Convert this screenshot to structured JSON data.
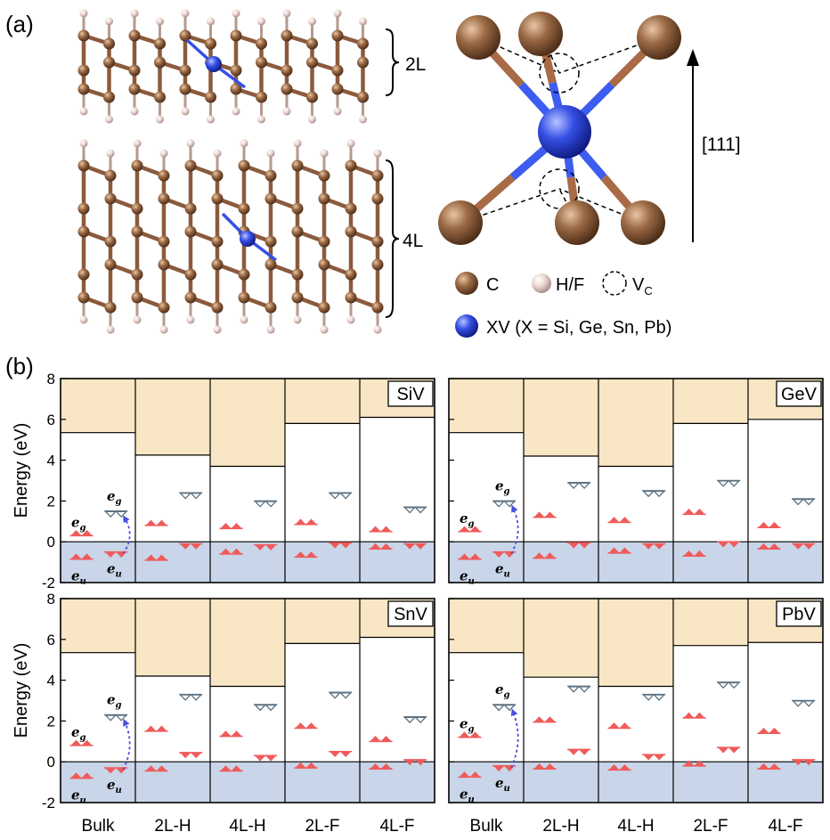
{
  "panel_a": {
    "label": "(a)",
    "layer_labels": [
      "2L",
      "4L"
    ],
    "direction_label": "[111]",
    "legend": {
      "carbon": "C",
      "terminal": "H/F",
      "vacancy_main": "V",
      "vacancy_sub": "C",
      "defect": "XV (X = Si, Ge, Sn, Pb)"
    },
    "colors": {
      "carbon": "#8b5a3c",
      "terminal": "#e8cdc8",
      "defect": "#2f45d8"
    }
  },
  "panel_b": {
    "label": "(b)",
    "ylabel": "Energy (eV)"
  },
  "state_labels": {
    "eg": "e",
    "eg_sub": "g",
    "eu": "e",
    "eu_sub": "u"
  },
  "chart_data": [
    {
      "type": "bar",
      "title": "SiV",
      "categories": [
        "Bulk",
        "2L-H",
        "4L-H",
        "2L-F",
        "4L-F"
      ],
      "ylim": [
        -2,
        8
      ],
      "yticks": [
        -2,
        0,
        2,
        4,
        6,
        8
      ],
      "ylabel": "Energy (eV)",
      "cbm": [
        5.35,
        4.25,
        3.7,
        5.8,
        6.1
      ],
      "vbm": [
        0,
        0,
        0,
        0,
        0
      ],
      "eg_up": [
        0.3,
        0.8,
        0.65,
        0.85,
        0.5
      ],
      "eu_up": [
        -0.85,
        -0.9,
        -0.6,
        -0.75,
        -0.35
      ],
      "eg_down": [
        1.5,
        2.4,
        2.0,
        2.4,
        1.7
      ],
      "eu_down": [
        -0.5,
        -0.1,
        -0.15,
        -0.05,
        -0.1
      ],
      "colors": {
        "cb": "#f8e6c4",
        "vb": "#c9d5e8",
        "occupied": "#f05a5a",
        "empty": "#5d7383"
      }
    },
    {
      "type": "bar",
      "title": "GeV",
      "categories": [
        "Bulk",
        "2L-H",
        "4L-H",
        "2L-F",
        "4L-F"
      ],
      "ylim": [
        -2,
        8
      ],
      "yticks": [
        -2,
        0,
        2,
        4,
        6,
        8
      ],
      "ylabel": "Energy (eV)",
      "cbm": [
        5.35,
        4.2,
        3.7,
        5.8,
        6.0
      ],
      "vbm": [
        0,
        0,
        0,
        0,
        0
      ],
      "eg_up": [
        0.5,
        1.2,
        0.95,
        1.35,
        0.7
      ],
      "eu_up": [
        -0.85,
        -0.8,
        -0.55,
        -0.7,
        -0.35
      ],
      "eg_down": [
        2.0,
        2.9,
        2.5,
        3.0,
        2.1
      ],
      "eu_down": [
        -0.5,
        -0.05,
        -0.1,
        0.0,
        -0.1
      ],
      "colors": {
        "cb": "#f8e6c4",
        "vb": "#c9d5e8",
        "occupied": "#f05a5a",
        "empty": "#5d7383"
      }
    },
    {
      "type": "bar",
      "title": "SnV",
      "categories": [
        "Bulk",
        "2L-H",
        "4L-H",
        "2L-F",
        "4L-F"
      ],
      "ylim": [
        -2,
        8
      ],
      "yticks": [
        -2,
        0,
        2,
        4,
        6,
        8
      ],
      "ylabel": "Energy (eV)",
      "cbm": [
        5.35,
        4.2,
        3.7,
        5.8,
        6.1
      ],
      "vbm": [
        0,
        0,
        0,
        0,
        0
      ],
      "eg_up": [
        0.8,
        1.5,
        1.25,
        1.65,
        1.0
      ],
      "eu_up": [
        -0.8,
        -0.45,
        -0.45,
        -0.3,
        -0.35
      ],
      "eg_down": [
        2.3,
        3.3,
        2.8,
        3.4,
        2.2
      ],
      "eu_down": [
        -0.3,
        0.45,
        0.3,
        0.5,
        0.1
      ],
      "colors": {
        "cb": "#f8e6c4",
        "vb": "#c9d5e8",
        "occupied": "#f05a5a",
        "empty": "#5d7383"
      }
    },
    {
      "type": "bar",
      "title": "PbV",
      "categories": [
        "Bulk",
        "2L-H",
        "4L-H",
        "2L-F",
        "4L-F"
      ],
      "ylim": [
        -2,
        8
      ],
      "yticks": [
        -2,
        0,
        2,
        4,
        6,
        8
      ],
      "ylabel": "Energy (eV)",
      "cbm": [
        5.35,
        4.15,
        3.7,
        5.7,
        5.85
      ],
      "vbm": [
        0,
        0,
        0,
        0,
        0
      ],
      "eg_up": [
        1.2,
        1.95,
        1.65,
        2.15,
        1.4
      ],
      "eu_up": [
        -0.75,
        -0.35,
        -0.4,
        -0.2,
        -0.35
      ],
      "eg_down": [
        2.8,
        3.7,
        3.3,
        3.9,
        3.0
      ],
      "eu_down": [
        -0.2,
        0.6,
        0.35,
        0.7,
        0.1
      ],
      "colors": {
        "cb": "#f8e6c4",
        "vb": "#c9d5e8",
        "occupied": "#f05a5a",
        "empty": "#5d7383"
      }
    }
  ]
}
